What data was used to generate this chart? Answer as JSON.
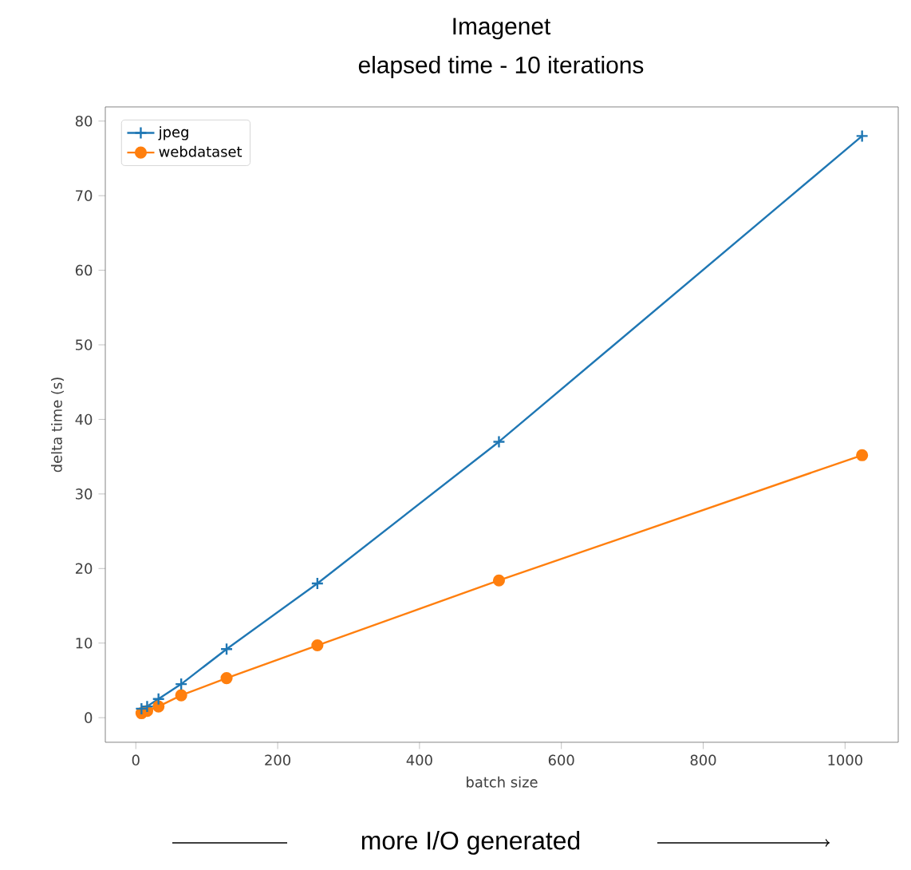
{
  "chart_data": {
    "type": "line",
    "title": "Imagenet",
    "subtitle": "elapsed time - 10 iterations",
    "xlabel": "batch size",
    "ylabel": "delta time (s)",
    "x": [
      8,
      16,
      32,
      64,
      128,
      256,
      512,
      1024
    ],
    "series": [
      {
        "name": "jpeg",
        "color": "#1f77b4",
        "marker": "cross",
        "values": [
          1.2,
          1.5,
          2.5,
          4.5,
          9.2,
          18,
          37,
          78
        ]
      },
      {
        "name": "webdataset",
        "color": "#ff7f0e",
        "marker": "circle",
        "values": [
          0.6,
          0.9,
          1.5,
          3,
          5.3,
          9.7,
          18.4,
          35.2
        ]
      }
    ],
    "xlim": [
      -43,
      1075
    ],
    "ylim": [
      -3.3,
      81.9
    ],
    "xticks": [
      0,
      200,
      400,
      600,
      800,
      1000
    ],
    "yticks": [
      0,
      10,
      20,
      30,
      40,
      50,
      60,
      70,
      80
    ],
    "grid": false,
    "legend": "top left",
    "line_style": "solid",
    "annotations": [
      "more I/O generated"
    ]
  }
}
